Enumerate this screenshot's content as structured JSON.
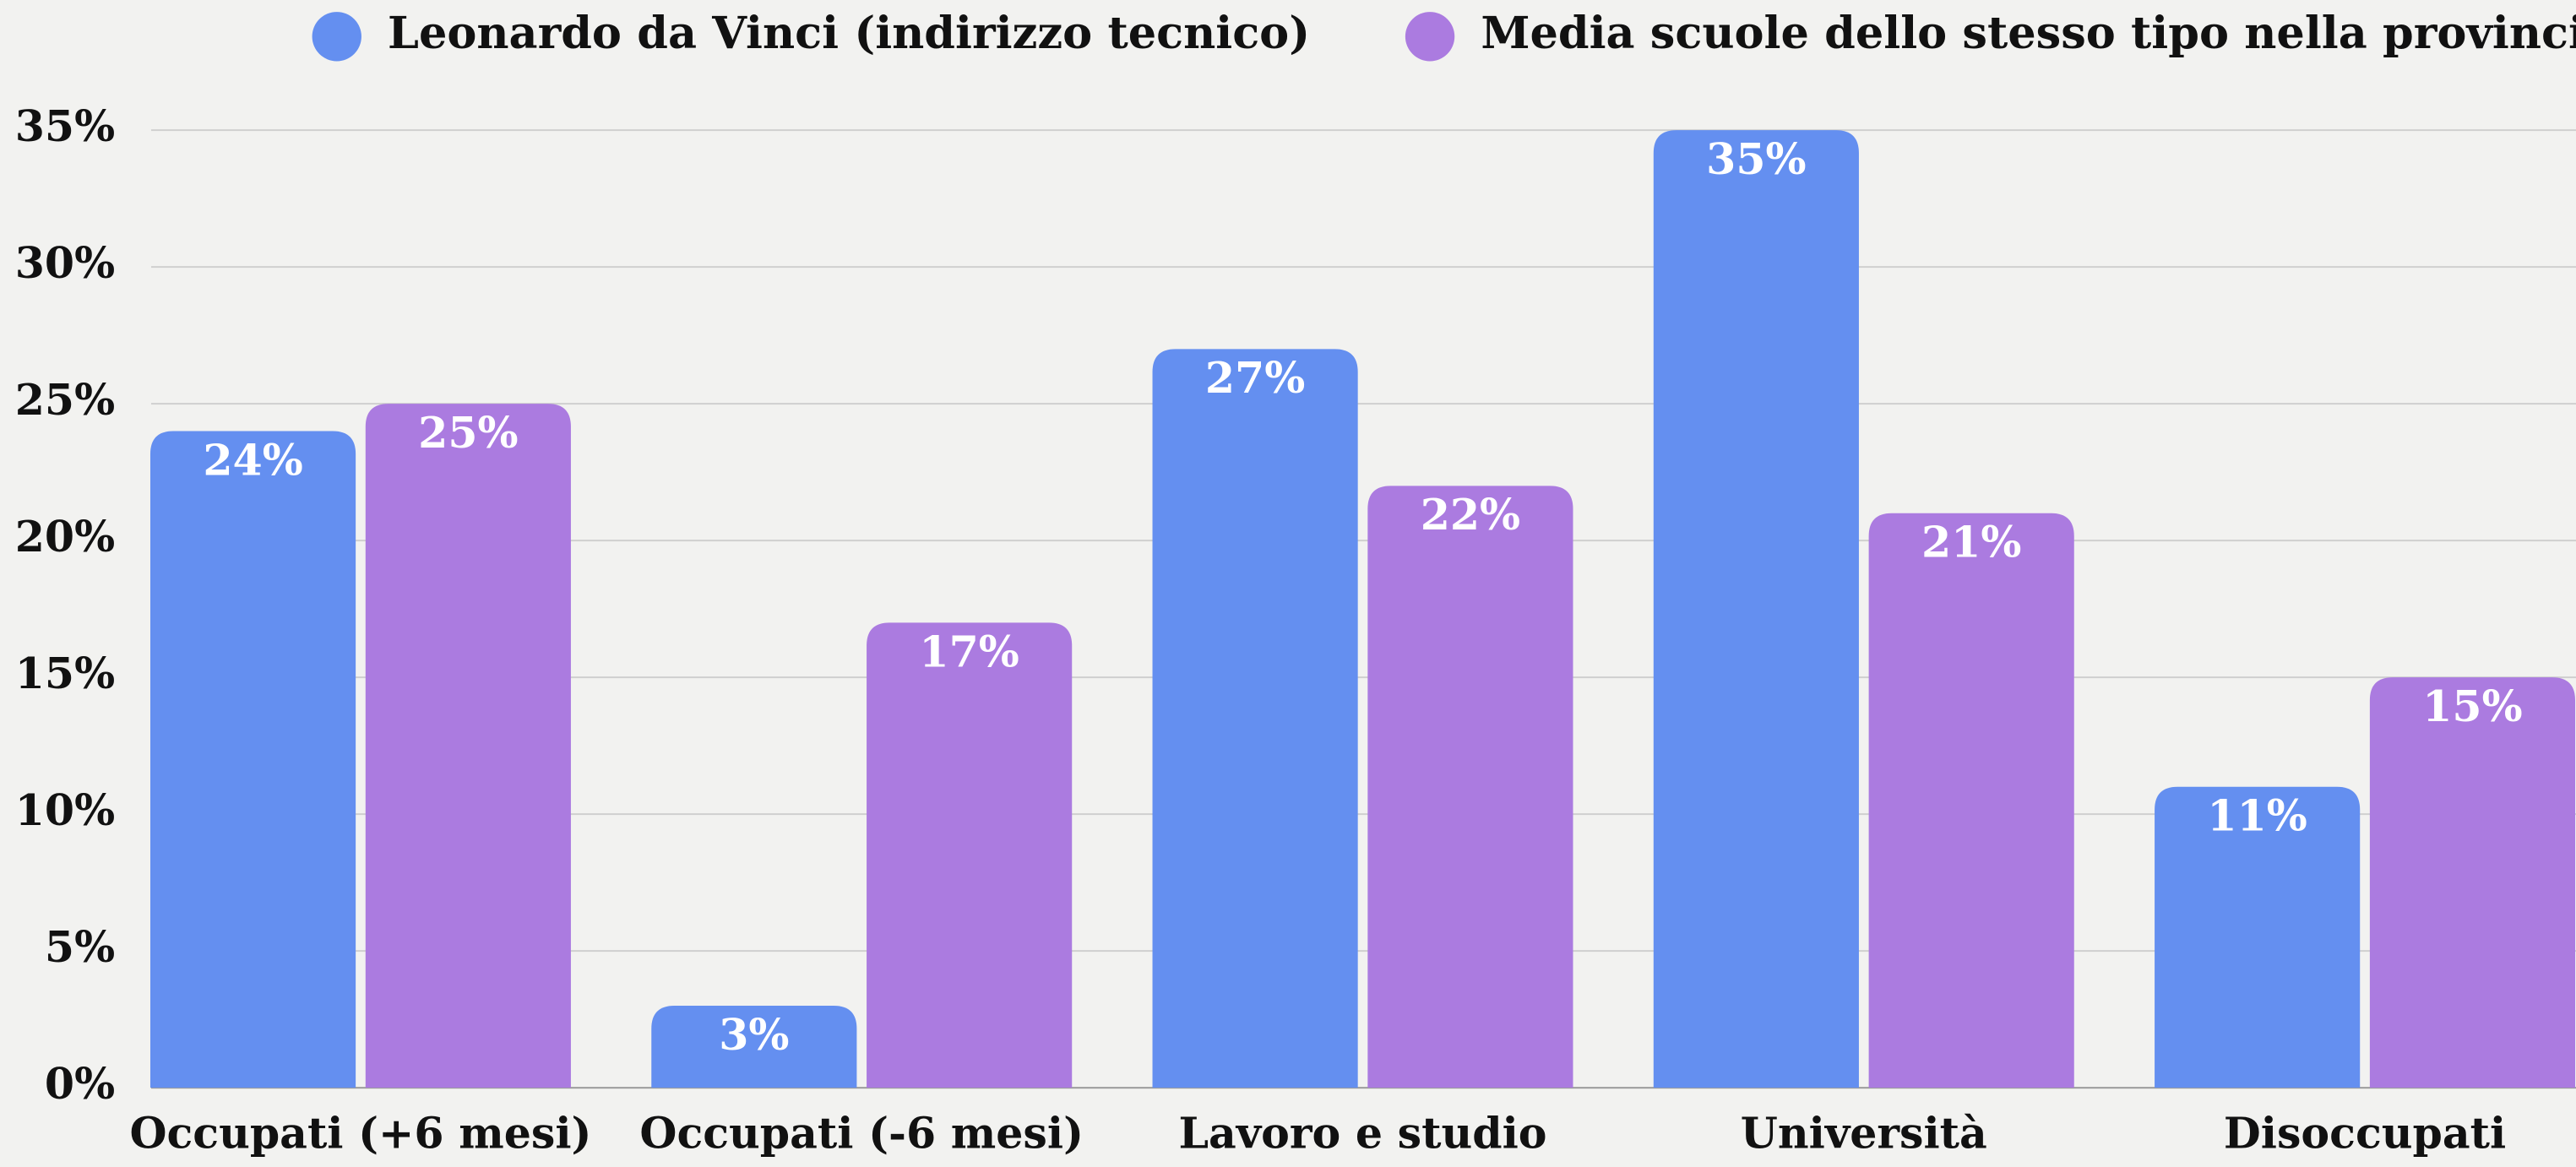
{
  "chart_data": {
    "type": "bar",
    "categories": [
      "Occupati (+6 mesi)",
      "Occupati (-6 mesi)",
      "Lavoro e studio",
      "Università",
      "Disoccupati"
    ],
    "series": [
      {
        "name": "Leonardo da Vinci (indirizzo tecnico)",
        "color": "#648ff0",
        "values": [
          24,
          3,
          27,
          35,
          11
        ],
        "value_labels": [
          "24%",
          "3%",
          "27%",
          "35%",
          "11%"
        ]
      },
      {
        "name": "Media scuole dello stesso tipo nella provincia",
        "color": "#ab7be0",
        "values": [
          25,
          17,
          22,
          21,
          15
        ],
        "value_labels": [
          "25%",
          "17%",
          "22%",
          "21%",
          "15%"
        ]
      }
    ],
    "ylim": [
      0,
      35
    ],
    "yticks": [
      {
        "value": 0,
        "label": "0%"
      },
      {
        "value": 5,
        "label": "5%"
      },
      {
        "value": 10,
        "label": "10%"
      },
      {
        "value": 15,
        "label": "15%"
      },
      {
        "value": 20,
        "label": "20%"
      },
      {
        "value": 25,
        "label": "25%"
      },
      {
        "value": 30,
        "label": "30%"
      },
      {
        "value": 35,
        "label": "35%"
      }
    ],
    "grid": true,
    "legend": "top"
  }
}
